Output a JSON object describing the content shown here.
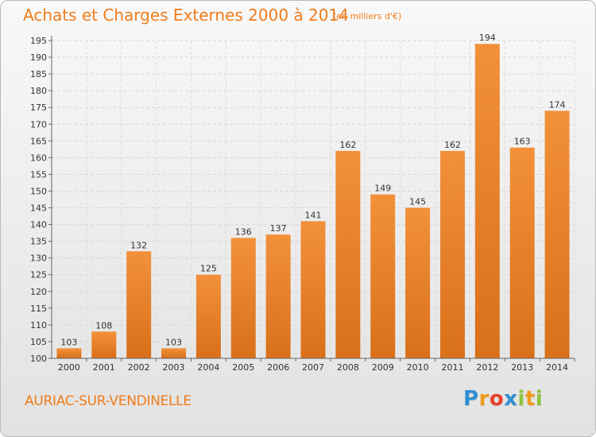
{
  "chart_data": {
    "type": "bar",
    "title": "Achats et Charges Externes 2000 à 2014",
    "subtitle": "(en milliers d'€)",
    "categories": [
      "2000",
      "2001",
      "2002",
      "2003",
      "2004",
      "2005",
      "2006",
      "2007",
      "2008",
      "2009",
      "2010",
      "2011",
      "2012",
      "2013",
      "2014"
    ],
    "values": [
      103,
      108,
      132,
      103,
      125,
      136,
      137,
      141,
      162,
      149,
      145,
      162,
      194,
      163,
      174
    ],
    "ylim": [
      100,
      195
    ],
    "yticks": [
      100,
      105,
      110,
      115,
      120,
      125,
      130,
      135,
      140,
      145,
      150,
      155,
      160,
      165,
      170,
      175,
      180,
      185,
      190,
      195
    ],
    "grid": true,
    "bar_color": "#f2913a",
    "bar_color_dark": "#d9701a"
  },
  "footer": {
    "place": "AURIAC-SUR-VENDINELLE",
    "logo_letters": [
      {
        "char": "P",
        "color": "#2f8fd2"
      },
      {
        "char": "r",
        "color": "#f39a1c"
      },
      {
        "char": "o",
        "color": "#e8402a"
      },
      {
        "char": "x",
        "color": "#2f8fd2"
      },
      {
        "char": "i",
        "color": "#8cc43c"
      },
      {
        "char": "t",
        "color": "#f39a1c"
      },
      {
        "char": "i",
        "color": "#8cc43c"
      }
    ]
  }
}
